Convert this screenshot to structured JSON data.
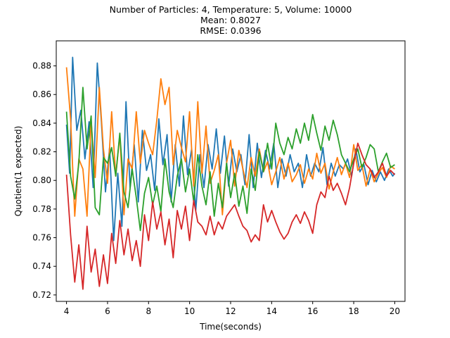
{
  "chart_data": {
    "type": "line",
    "title_lines": [
      "Number of Particles: 4, Temperature: 5, Volume: 10000",
      "Mean: 0.8027",
      "RMSE: 0.0396"
    ],
    "xlabel": "Time(seconds)",
    "ylabel": "Quotient(1 expected)",
    "xlim": [
      3.5,
      20.5
    ],
    "ylim": [
      0.7155,
      0.8975
    ],
    "xticks": [
      4,
      6,
      8,
      10,
      12,
      14,
      16,
      18,
      20
    ],
    "xtick_labels": [
      "4",
      "6",
      "8",
      "10",
      "12",
      "14",
      "16",
      "18",
      "20"
    ],
    "yticks": [
      0.72,
      0.74,
      0.76,
      0.78,
      0.8,
      0.82,
      0.84,
      0.86,
      0.88
    ],
    "ytick_labels": [
      "0.72",
      "0.74",
      "0.76",
      "0.78",
      "0.80",
      "0.82",
      "0.84",
      "0.86",
      "0.88"
    ],
    "legend": "none",
    "grid": false,
    "series": [
      {
        "name": "series-1",
        "color": "#1f77b4",
        "x": [
          4.0,
          4.15,
          4.3,
          4.5,
          4.7,
          4.9,
          5.1,
          5.3,
          5.5,
          5.7,
          5.9,
          6.1,
          6.3,
          6.5,
          6.7,
          6.9,
          7.1,
          7.3,
          7.5,
          7.7,
          7.9,
          8.1,
          8.3,
          8.5,
          8.7,
          8.9,
          9.1,
          9.3,
          9.5,
          9.7,
          9.9,
          10.1,
          10.3,
          10.5,
          10.7,
          10.9,
          11.1,
          11.3,
          11.5,
          11.7,
          11.9,
          12.1,
          12.3,
          12.5,
          12.7,
          12.9,
          13.1,
          13.3,
          13.5,
          13.7,
          13.9,
          14.1,
          14.3,
          14.5,
          14.7,
          14.9,
          15.1,
          15.3,
          15.5,
          15.7,
          15.9,
          16.1,
          16.3,
          16.5,
          16.7,
          16.9,
          17.1,
          17.3,
          17.5,
          17.7,
          17.9,
          18.1,
          18.3,
          18.5,
          18.7,
          18.9,
          19.1,
          19.3,
          19.5,
          19.7,
          19.9,
          20.0
        ],
        "y": [
          0.839,
          0.805,
          0.886,
          0.835,
          0.849,
          0.815,
          0.841,
          0.795,
          0.882,
          0.841,
          0.792,
          0.823,
          0.758,
          0.805,
          0.768,
          0.855,
          0.795,
          0.825,
          0.785,
          0.835,
          0.807,
          0.818,
          0.793,
          0.843,
          0.811,
          0.832,
          0.785,
          0.825,
          0.796,
          0.845,
          0.804,
          0.822,
          0.779,
          0.818,
          0.795,
          0.825,
          0.808,
          0.836,
          0.805,
          0.831,
          0.796,
          0.822,
          0.806,
          0.818,
          0.797,
          0.832,
          0.795,
          0.826,
          0.802,
          0.821,
          0.808,
          0.826,
          0.795,
          0.815,
          0.803,
          0.818,
          0.806,
          0.812,
          0.795,
          0.818,
          0.803,
          0.812,
          0.806,
          0.823,
          0.797,
          0.812,
          0.803,
          0.811,
          0.808,
          0.815,
          0.803,
          0.822,
          0.806,
          0.811,
          0.797,
          0.807,
          0.799,
          0.806,
          0.8,
          0.808,
          0.803,
          0.805
        ]
      },
      {
        "name": "series-2",
        "color": "#ff7f0e",
        "x": [
          4.0,
          4.2,
          4.4,
          4.6,
          4.8,
          5.0,
          5.2,
          5.4,
          5.6,
          5.8,
          6.0,
          6.2,
          6.4,
          6.6,
          6.8,
          7.0,
          7.2,
          7.4,
          7.6,
          7.8,
          8.0,
          8.2,
          8.4,
          8.6,
          8.8,
          9.0,
          9.2,
          9.4,
          9.6,
          9.8,
          10.0,
          10.2,
          10.4,
          10.6,
          10.8,
          11.0,
          11.2,
          11.4,
          11.6,
          11.8,
          12.0,
          12.2,
          12.4,
          12.6,
          12.8,
          13.0,
          13.2,
          13.4,
          13.6,
          13.8,
          14.0,
          14.2,
          14.4,
          14.6,
          14.8,
          15.0,
          15.2,
          15.4,
          15.6,
          15.8,
          16.0,
          16.2,
          16.4,
          16.6,
          16.8,
          17.0,
          17.2,
          17.4,
          17.6,
          17.8,
          18.0,
          18.2,
          18.4,
          18.6,
          18.8,
          19.0,
          19.2,
          19.4,
          19.6,
          19.8,
          20.0
        ],
        "y": [
          0.879,
          0.843,
          0.775,
          0.815,
          0.808,
          0.775,
          0.842,
          0.802,
          0.865,
          0.822,
          0.798,
          0.848,
          0.803,
          0.832,
          0.776,
          0.815,
          0.808,
          0.848,
          0.812,
          0.835,
          0.826,
          0.818,
          0.842,
          0.871,
          0.853,
          0.865,
          0.811,
          0.835,
          0.823,
          0.813,
          0.848,
          0.796,
          0.855,
          0.805,
          0.838,
          0.798,
          0.807,
          0.818,
          0.776,
          0.812,
          0.828,
          0.796,
          0.821,
          0.808,
          0.795,
          0.816,
          0.803,
          0.822,
          0.806,
          0.813,
          0.797,
          0.806,
          0.816,
          0.801,
          0.812,
          0.799,
          0.804,
          0.811,
          0.798,
          0.808,
          0.801,
          0.819,
          0.805,
          0.812,
          0.794,
          0.806,
          0.816,
          0.804,
          0.812,
          0.802,
          0.825,
          0.807,
          0.811,
          0.796,
          0.808,
          0.799,
          0.805,
          0.809,
          0.802,
          0.81,
          0.808
        ]
      },
      {
        "name": "series-3",
        "color": "#2ca02c",
        "x": [
          4.0,
          4.2,
          4.4,
          4.6,
          4.8,
          5.0,
          5.2,
          5.4,
          5.6,
          5.8,
          6.0,
          6.2,
          6.4,
          6.6,
          6.8,
          7.0,
          7.2,
          7.4,
          7.6,
          7.8,
          8.0,
          8.2,
          8.4,
          8.6,
          8.8,
          9.0,
          9.2,
          9.4,
          9.6,
          9.8,
          10.0,
          10.2,
          10.4,
          10.6,
          10.8,
          11.0,
          11.2,
          11.4,
          11.6,
          11.8,
          12.0,
          12.2,
          12.4,
          12.6,
          12.8,
          13.0,
          13.2,
          13.4,
          13.6,
          13.8,
          14.0,
          14.2,
          14.4,
          14.6,
          14.8,
          15.0,
          15.2,
          15.4,
          15.6,
          15.8,
          16.0,
          16.2,
          16.4,
          16.6,
          16.8,
          17.0,
          17.2,
          17.4,
          17.6,
          17.8,
          18.0,
          18.2,
          18.4,
          18.6,
          18.8,
          19.0,
          19.2,
          19.4,
          19.6,
          19.8,
          20.0
        ],
        "y": [
          0.848,
          0.803,
          0.787,
          0.812,
          0.865,
          0.822,
          0.845,
          0.781,
          0.776,
          0.816,
          0.812,
          0.823,
          0.803,
          0.833,
          0.792,
          0.781,
          0.808,
          0.788,
          0.765,
          0.791,
          0.802,
          0.783,
          0.796,
          0.778,
          0.815,
          0.792,
          0.781,
          0.803,
          0.815,
          0.792,
          0.808,
          0.785,
          0.818,
          0.796,
          0.783,
          0.806,
          0.775,
          0.798,
          0.781,
          0.812,
          0.788,
          0.805,
          0.782,
          0.796,
          0.777,
          0.808,
          0.793,
          0.82,
          0.806,
          0.826,
          0.808,
          0.84,
          0.826,
          0.818,
          0.83,
          0.822,
          0.836,
          0.826,
          0.84,
          0.828,
          0.846,
          0.833,
          0.821,
          0.838,
          0.828,
          0.842,
          0.832,
          0.818,
          0.812,
          0.806,
          0.815,
          0.822,
          0.809,
          0.816,
          0.825,
          0.822,
          0.806,
          0.813,
          0.819,
          0.809,
          0.811
        ]
      },
      {
        "name": "series-4",
        "color": "#d62728",
        "x": [
          4.0,
          4.2,
          4.4,
          4.6,
          4.8,
          5.0,
          5.2,
          5.4,
          5.6,
          5.8,
          6.0,
          6.2,
          6.4,
          6.6,
          6.8,
          7.0,
          7.2,
          7.4,
          7.6,
          7.8,
          8.0,
          8.2,
          8.4,
          8.6,
          8.8,
          9.0,
          9.2,
          9.4,
          9.6,
          9.8,
          10.0,
          10.2,
          10.4,
          10.6,
          10.8,
          11.0,
          11.2,
          11.4,
          11.6,
          11.8,
          12.0,
          12.2,
          12.4,
          12.6,
          12.8,
          13.0,
          13.2,
          13.4,
          13.6,
          13.8,
          14.0,
          14.2,
          14.4,
          14.6,
          14.8,
          15.0,
          15.2,
          15.4,
          15.6,
          15.8,
          16.0,
          16.2,
          16.4,
          16.6,
          16.8,
          17.0,
          17.2,
          17.4,
          17.6,
          17.8,
          18.0,
          18.2,
          18.4,
          18.6,
          18.8,
          19.0,
          19.2,
          19.4,
          19.6,
          19.8,
          20.0
        ],
        "y": [
          0.804,
          0.762,
          0.729,
          0.755,
          0.724,
          0.768,
          0.736,
          0.752,
          0.726,
          0.748,
          0.728,
          0.763,
          0.742,
          0.772,
          0.748,
          0.766,
          0.744,
          0.758,
          0.74,
          0.776,
          0.758,
          0.785,
          0.766,
          0.778,
          0.755,
          0.773,
          0.746,
          0.779,
          0.766,
          0.782,
          0.758,
          0.786,
          0.771,
          0.768,
          0.762,
          0.775,
          0.762,
          0.771,
          0.766,
          0.775,
          0.779,
          0.783,
          0.775,
          0.768,
          0.765,
          0.757,
          0.762,
          0.758,
          0.783,
          0.771,
          0.779,
          0.771,
          0.764,
          0.759,
          0.763,
          0.771,
          0.776,
          0.77,
          0.778,
          0.772,
          0.763,
          0.783,
          0.792,
          0.788,
          0.803,
          0.793,
          0.798,
          0.791,
          0.783,
          0.795,
          0.812,
          0.826,
          0.818,
          0.811,
          0.808,
          0.802,
          0.806,
          0.812,
          0.803,
          0.807,
          0.804
        ]
      }
    ]
  }
}
